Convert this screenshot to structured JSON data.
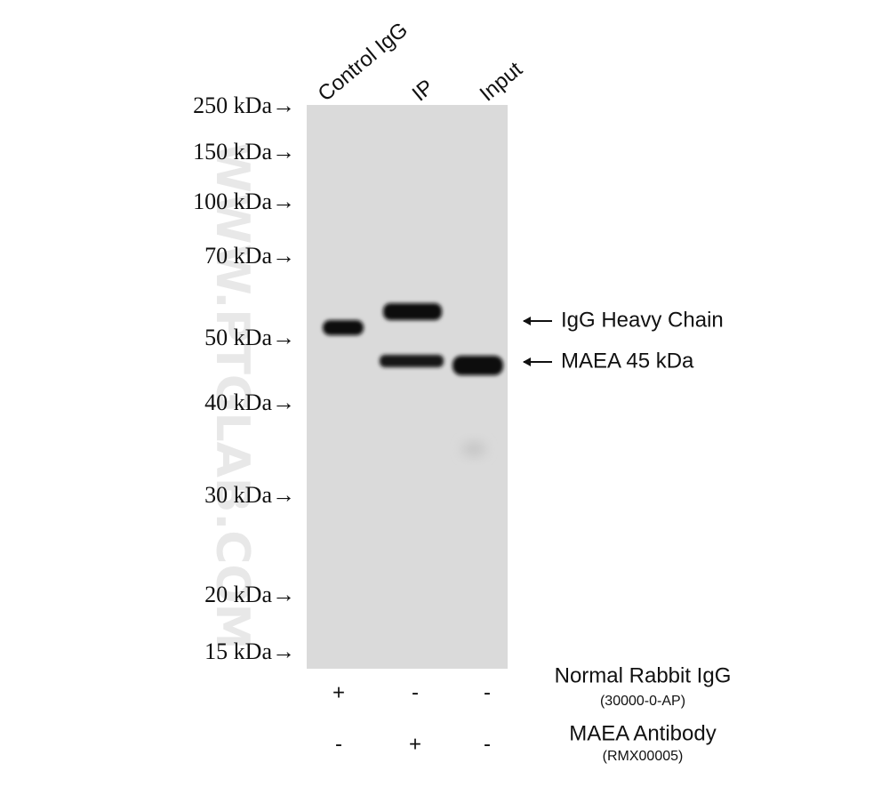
{
  "lanes": [
    "Control IgG",
    "IP",
    "Input"
  ],
  "markers": [
    "250 kDa→",
    "150 kDa→",
    "100 kDa→",
    "70 kDa→",
    "50 kDa→",
    "40 kDa→",
    "30 kDa→",
    "20 kDa→",
    "15 kDa→"
  ],
  "annotations": [
    "IgG Heavy Chain",
    "MAEA  45 kDa"
  ],
  "treatments": [
    {
      "label": "Normal Rabbit IgG",
      "catalog": "(30000-0-AP)",
      "signs": [
        "+",
        "-",
        "-"
      ]
    },
    {
      "label": "MAEA Antibody",
      "catalog": "(RMX00005)",
      "signs": [
        "-",
        "+",
        "-"
      ]
    }
  ],
  "watermark": "WWW.PTGLAB.COM"
}
